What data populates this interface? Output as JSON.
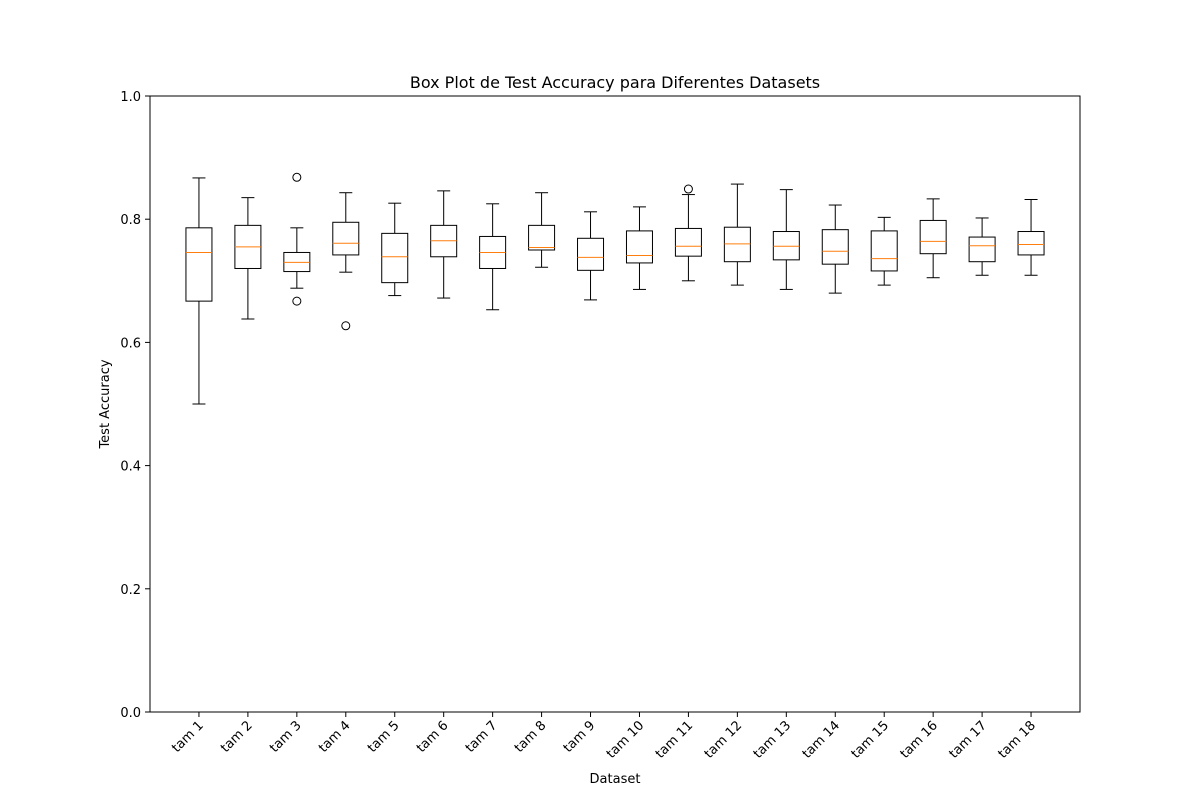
{
  "chart_data": {
    "type": "box",
    "title": "Box Plot de Test Accuracy para Diferentes Datasets",
    "xlabel": "Dataset",
    "ylabel": "Test Accuracy",
    "ylim": [
      0.0,
      1.0
    ],
    "yticks": [
      "0.0",
      "0.2",
      "0.4",
      "0.6",
      "0.8",
      "1.0"
    ],
    "ytick_values": [
      0.0,
      0.2,
      0.4,
      0.6,
      0.8,
      1.0
    ],
    "grid": false,
    "legend": "none",
    "colors": {
      "box": "#000000",
      "median": "#ff7f0e",
      "outlier": "#000000"
    },
    "categories": [
      "tam 1",
      "tam 2",
      "tam 3",
      "tam 4",
      "tam 5",
      "tam 6",
      "tam 7",
      "tam 8",
      "tam 9",
      "tam 10",
      "tam 11",
      "tam 12",
      "tam 13",
      "tam 14",
      "tam 15",
      "tam 16",
      "tam 17",
      "tam 18"
    ],
    "boxes": [
      {
        "whislo": 0.5,
        "q1": 0.667,
        "med": 0.746,
        "q3": 0.786,
        "whishi": 0.867,
        "fliers": []
      },
      {
        "whislo": 0.638,
        "q1": 0.72,
        "med": 0.755,
        "q3": 0.79,
        "whishi": 0.835,
        "fliers": []
      },
      {
        "whislo": 0.688,
        "q1": 0.715,
        "med": 0.73,
        "q3": 0.746,
        "whishi": 0.786,
        "fliers": [
          0.667,
          0.868
        ]
      },
      {
        "whislo": 0.714,
        "q1": 0.742,
        "med": 0.761,
        "q3": 0.795,
        "whishi": 0.843,
        "fliers": [
          0.627
        ]
      },
      {
        "whislo": 0.676,
        "q1": 0.697,
        "med": 0.739,
        "q3": 0.777,
        "whishi": 0.826,
        "fliers": []
      },
      {
        "whislo": 0.672,
        "q1": 0.739,
        "med": 0.765,
        "q3": 0.79,
        "whishi": 0.846,
        "fliers": []
      },
      {
        "whislo": 0.653,
        "q1": 0.72,
        "med": 0.746,
        "q3": 0.772,
        "whishi": 0.825,
        "fliers": []
      },
      {
        "whislo": 0.722,
        "q1": 0.75,
        "med": 0.754,
        "q3": 0.79,
        "whishi": 0.843,
        "fliers": []
      },
      {
        "whislo": 0.669,
        "q1": 0.717,
        "med": 0.738,
        "q3": 0.769,
        "whishi": 0.812,
        "fliers": []
      },
      {
        "whislo": 0.686,
        "q1": 0.729,
        "med": 0.741,
        "q3": 0.781,
        "whishi": 0.82,
        "fliers": []
      },
      {
        "whislo": 0.7,
        "q1": 0.74,
        "med": 0.756,
        "q3": 0.785,
        "whishi": 0.84,
        "fliers": [
          0.849
        ]
      },
      {
        "whislo": 0.693,
        "q1": 0.731,
        "med": 0.76,
        "q3": 0.787,
        "whishi": 0.857,
        "fliers": []
      },
      {
        "whislo": 0.686,
        "q1": 0.734,
        "med": 0.756,
        "q3": 0.78,
        "whishi": 0.848,
        "fliers": []
      },
      {
        "whislo": 0.68,
        "q1": 0.727,
        "med": 0.748,
        "q3": 0.783,
        "whishi": 0.823,
        "fliers": []
      },
      {
        "whislo": 0.693,
        "q1": 0.716,
        "med": 0.736,
        "q3": 0.781,
        "whishi": 0.803,
        "fliers": []
      },
      {
        "whislo": 0.705,
        "q1": 0.744,
        "med": 0.764,
        "q3": 0.798,
        "whishi": 0.833,
        "fliers": []
      },
      {
        "whislo": 0.709,
        "q1": 0.731,
        "med": 0.757,
        "q3": 0.771,
        "whishi": 0.802,
        "fliers": []
      },
      {
        "whislo": 0.709,
        "q1": 0.742,
        "med": 0.759,
        "q3": 0.78,
        "whishi": 0.832,
        "fliers": []
      }
    ]
  }
}
